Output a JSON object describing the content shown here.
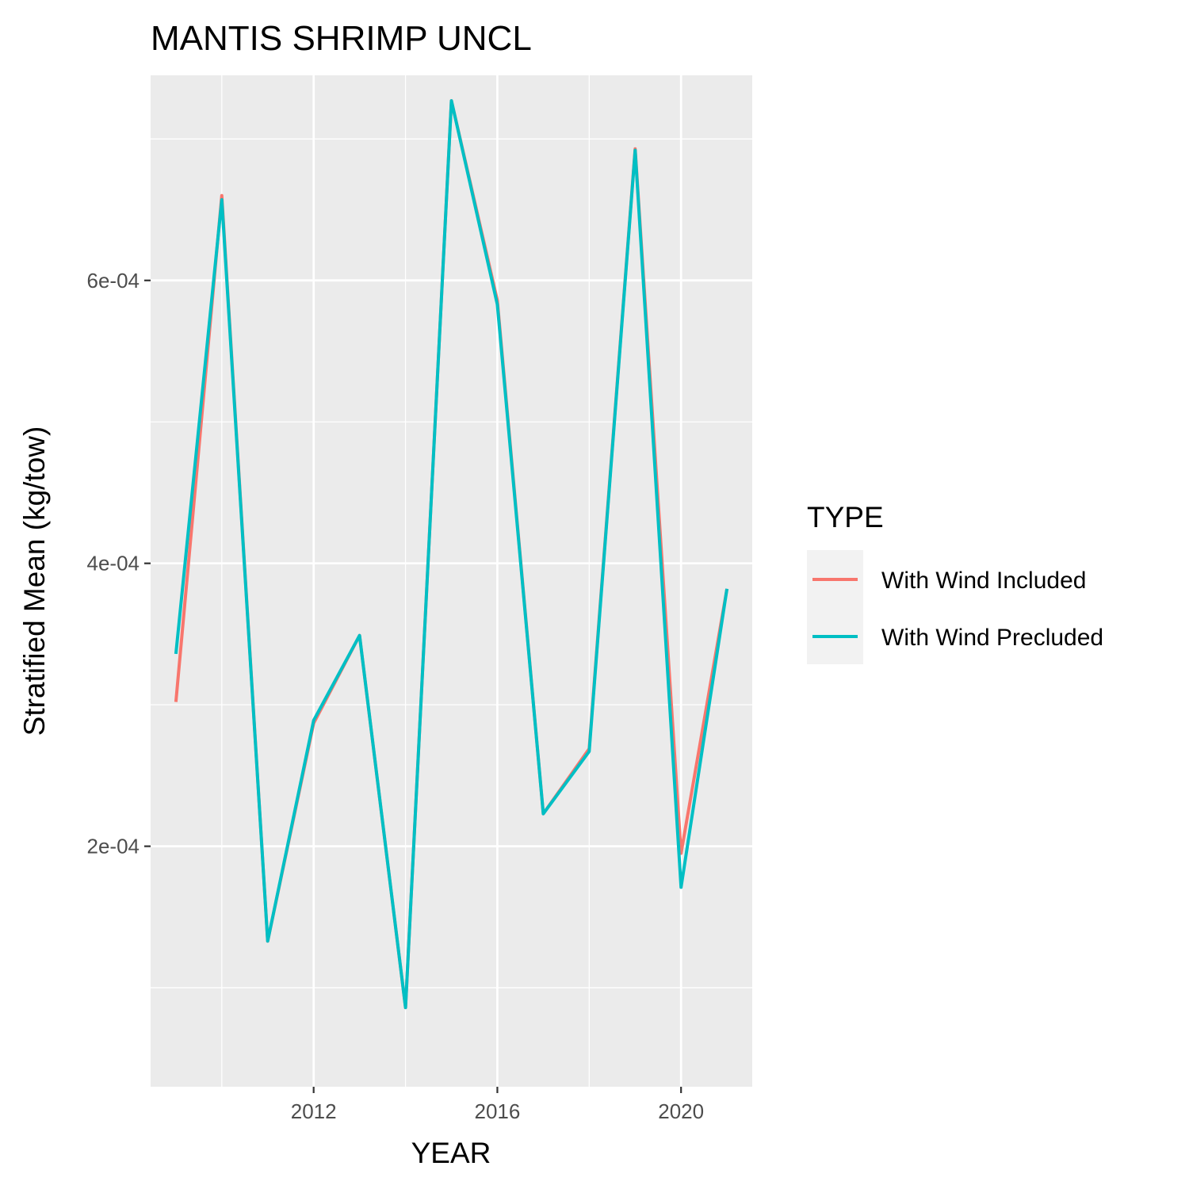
{
  "chart_data": {
    "type": "line",
    "title": "MANTIS SHRIMP UNCL",
    "xlabel": "YEAR",
    "ylabel": "Stratified Mean (kg/tow)",
    "x": [
      2009,
      2010,
      2011,
      2012,
      2013,
      2014,
      2015,
      2016,
      2017,
      2018,
      2019,
      2020,
      2021
    ],
    "xlim": [
      2008.45,
      2021.55
    ],
    "ylim": [
      3e-05,
      0.000745
    ],
    "x_ticks": [
      2012,
      2016,
      2020
    ],
    "x_tick_labels": [
      "2012",
      "2016",
      "2020"
    ],
    "y_ticks": [
      0.0002,
      0.0004,
      0.0006
    ],
    "y_tick_labels": [
      "2e-04",
      "4e-04",
      "6e-04"
    ],
    "grid": true,
    "legend": {
      "title": "TYPE",
      "position": "right"
    },
    "series": [
      {
        "name": "With Wind Included",
        "color": "#F8766D",
        "values": [
          0.000302,
          0.00066,
          0.000133,
          0.000287,
          0.000349,
          8.6e-05,
          0.000727,
          0.000586,
          0.000223,
          0.000269,
          0.000693,
          0.000195,
          0.000382
        ]
      },
      {
        "name": "With Wind Precluded",
        "color": "#00BFC4",
        "values": [
          0.000336,
          0.000657,
          0.000133,
          0.000289,
          0.000349,
          8.6e-05,
          0.000727,
          0.000583,
          0.000223,
          0.000267,
          0.000692,
          0.000171,
          0.000382
        ]
      }
    ]
  }
}
